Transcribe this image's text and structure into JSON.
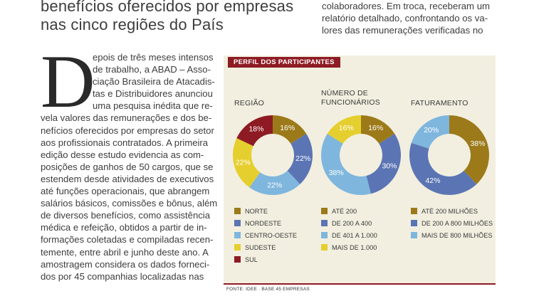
{
  "headline": {
    "lines": [
      "benefícios oferecidos por empresas",
      "nas cinco regiões do País"
    ]
  },
  "intro_right": {
    "lines": [
      "colaboradores. Em troca, receberam um",
      "relatório detalhado, confrontando os va-",
      "lores das remunerações verificadas no"
    ]
  },
  "article": {
    "dropcap": "D",
    "lines": [
      "epois de três meses intensos",
      "de trabalho, a ABAD – Asso-",
      "ciação Brasileira de Atacadis-",
      "tas e Distribuidores anunciou",
      "uma pesquisa inédita que re-",
      "vela valores das remunerações e dos be-",
      "nefícios oferecidos por empresas do setor",
      "aos profissionais contratados. A primeira",
      "edição desse estudo evidencia as com-",
      "posições de ganhos de 50 cargos, que se",
      "estendem desde atividades de executivos",
      "até funções operacionais, que abrangem",
      "salários básicos, comissões e bônus, além",
      "de diversos benefícios, como assistência",
      "médica e refeição, obtidos a partir de in-",
      "formações coletadas e compiladas recen-",
      "temente, entre abril e junho deste ano. A",
      "amostragem considera os dados forneci-",
      "dos por 45 companhias localizadas nas"
    ]
  },
  "panel": {
    "header": "PERFIL DOS PARTICIPANTES",
    "source": "FONTE: IDEE · BASE 45 EMPRESAS"
  },
  "colors": {
    "panel_bg": "#f2efe0",
    "header_bg": "#8e1b24",
    "norte": "#9c7a1a",
    "nordeste": "#5b75b4",
    "centro_oeste": "#7fb6dd",
    "sudeste": "#e5cf2e",
    "sul": "#8e1b24"
  },
  "chart_data": [
    {
      "type": "pie",
      "title": "REGIÃO",
      "categories": [
        "NORTE",
        "NORDESTE",
        "CENTRO-OESTE",
        "SUDESTE",
        "SUL"
      ],
      "values": [
        16,
        22,
        22,
        22,
        18
      ],
      "labels": [
        "16%",
        "22%",
        "22%",
        "22%",
        "18%"
      ],
      "colors": [
        "#9c7a1a",
        "#5b75b4",
        "#7fb6dd",
        "#e5cf2e",
        "#8e1b24"
      ]
    },
    {
      "type": "pie",
      "title": "NÚMERO DE FUNCIONÁRIOS",
      "title_lines": [
        "NÚMERO DE",
        "FUNCIONÁRIOS"
      ],
      "categories": [
        "ATÉ 200",
        "DE 200 A 400",
        "DE 401 A 1.000",
        "MAIS DE 1.000"
      ],
      "values": [
        16,
        30,
        38,
        16
      ],
      "labels": [
        "16%",
        "30%",
        "38%",
        "16%"
      ],
      "colors": [
        "#9c7a1a",
        "#5b75b4",
        "#7fb6dd",
        "#e5cf2e"
      ]
    },
    {
      "type": "pie",
      "title": "FATURAMENTO",
      "categories": [
        "ATÉ 200 MILHÕES",
        "DE 200 A 800 MILHÕES",
        "MAIS DE 800 MILHÕES"
      ],
      "values": [
        38,
        42,
        20
      ],
      "labels": [
        "38%",
        "42%",
        "20%"
      ],
      "colors": [
        "#9c7a1a",
        "#5b75b4",
        "#7fb6dd"
      ]
    }
  ]
}
